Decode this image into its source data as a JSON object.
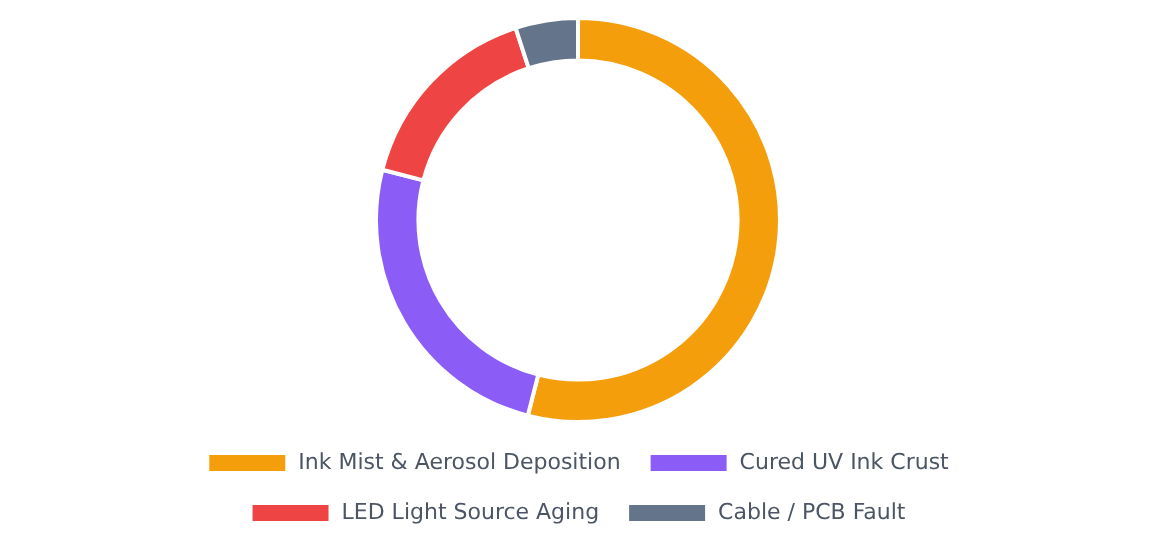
{
  "chart_data": {
    "type": "donut",
    "categories": [
      "Ink Mist & Aerosol Deposition",
      "Cured UV Ink Crust",
      "LED Light Source Aging",
      "Cable / PCB Fault"
    ],
    "values": [
      54,
      25,
      16,
      5
    ],
    "colors": [
      "#f59e0b",
      "#8b5cf6",
      "#ef4444",
      "#64748b"
    ],
    "legend": "bottom"
  }
}
